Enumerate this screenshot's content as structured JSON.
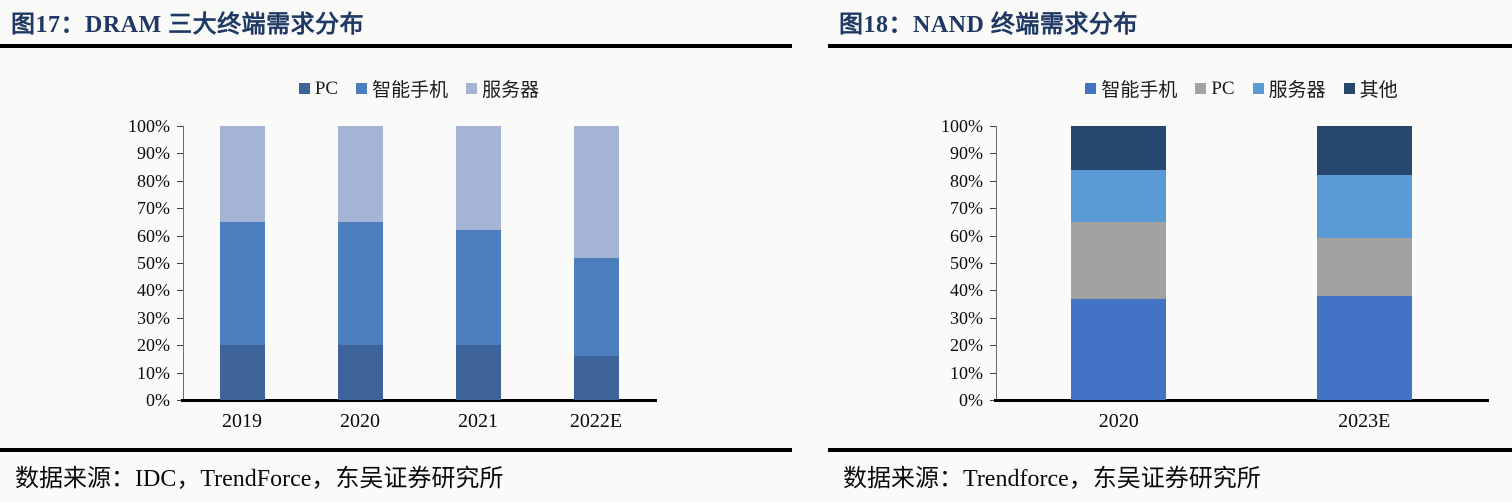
{
  "page": {
    "background": "#FAFAF8"
  },
  "panels": [
    {
      "title": "图17：DRAM 三大终端需求分布",
      "source": "数据来源：IDC，TrendForce，东吴证券研究所"
    },
    {
      "title": "图18：NAND 终端需求分布",
      "source": "数据来源：Trendforce，东吴证券研究所"
    }
  ],
  "chart_data": [
    {
      "type": "bar",
      "stacked": true,
      "unit": "percent",
      "title": "DRAM 三大终端需求分布",
      "categories": [
        "2019",
        "2020",
        "2021",
        "2022E"
      ],
      "series": [
        {
          "name": "PC",
          "color": "#3E6399",
          "values": [
            20,
            20,
            20,
            16
          ]
        },
        {
          "name": "智能手机",
          "color": "#4C7DBC",
          "values": [
            45,
            45,
            42,
            36
          ]
        },
        {
          "name": "服务器",
          "color": "#A5B3D5",
          "values": [
            35,
            35,
            38,
            48
          ]
        }
      ],
      "y_ticks": [
        "0%",
        "10%",
        "20%",
        "30%",
        "40%",
        "50%",
        "60%",
        "70%",
        "80%",
        "90%",
        "100%"
      ],
      "ylim": [
        0,
        100
      ],
      "legend_position": "top",
      "grid": false
    },
    {
      "type": "bar",
      "stacked": true,
      "unit": "percent",
      "title": "NAND 终端需求分布",
      "categories": [
        "2020",
        "2023E"
      ],
      "series": [
        {
          "name": "智能手机",
          "color": "#4472C4",
          "values": [
            37,
            38
          ]
        },
        {
          "name": "PC",
          "color": "#A2A2A2",
          "values": [
            28,
            21
          ]
        },
        {
          "name": "服务器",
          "color": "#5B9BD5",
          "values": [
            19,
            23
          ]
        },
        {
          "name": "其他",
          "color": "#27476E",
          "values": [
            16,
            18
          ]
        }
      ],
      "y_ticks": [
        "0%",
        "10%",
        "20%",
        "30%",
        "40%",
        "50%",
        "60%",
        "70%",
        "80%",
        "90%",
        "100%"
      ],
      "ylim": [
        0,
        100
      ],
      "legend_position": "top",
      "grid": false
    }
  ]
}
